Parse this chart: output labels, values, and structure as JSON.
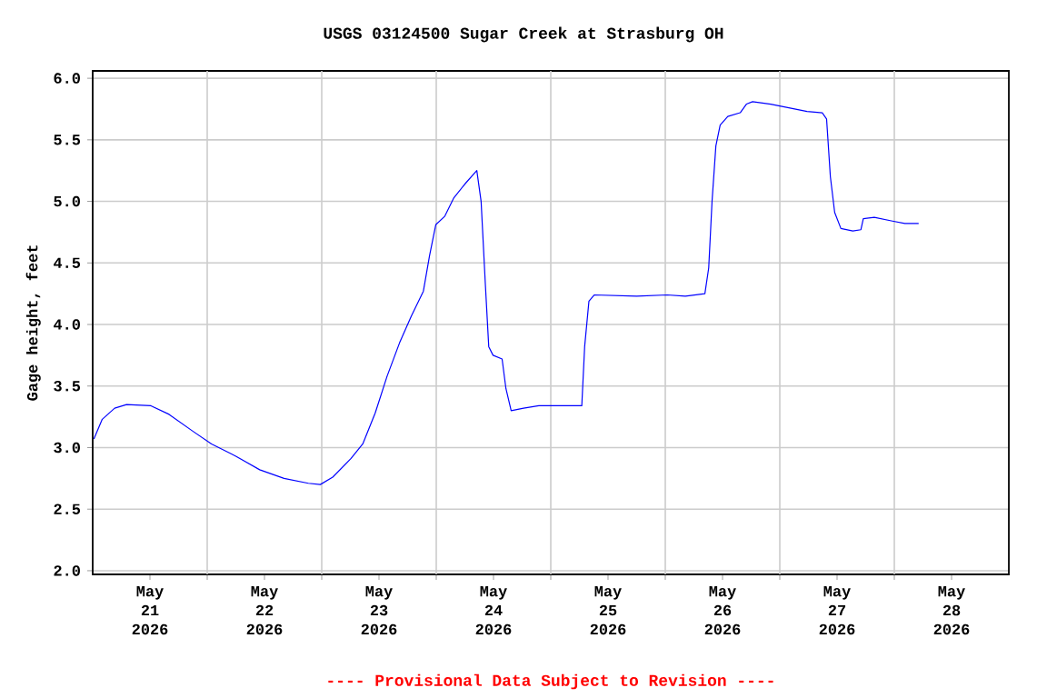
{
  "chart_data": {
    "type": "line",
    "title": "USGS 03124500 Sugar Creek at Strasburg OH",
    "ylabel": "Gage height, feet",
    "annotations": [
      "---- Provisional Data Subject to Revision ----"
    ],
    "x": [
      "2026-05-21T00:15",
      "2026-05-21T02:00",
      "2026-05-21T04:36",
      "2026-05-21T07:06",
      "2026-05-21T12:12",
      "2026-05-21T16:00",
      "2026-05-21T21:06",
      "2026-05-22T00:54",
      "2026-05-22T06:00",
      "2026-05-22T11:00",
      "2026-05-22T16:06",
      "2026-05-22T21:12",
      "2026-05-22T23:42",
      "2026-05-23T02:18",
      "2026-05-23T06:06",
      "2026-05-23T08:36",
      "2026-05-23T11:12",
      "2026-05-23T13:42",
      "2026-05-23T16:18",
      "2026-05-23T18:48",
      "2026-05-23T21:18",
      "2026-05-23T22:36",
      "2026-05-23T23:54",
      "2026-05-24T01:48",
      "2026-05-24T03:42",
      "2026-05-24T06:12",
      "2026-05-24T08:30",
      "2026-05-24T09:24",
      "2026-05-24T10:18",
      "2026-05-24T11:00",
      "2026-05-24T11:54",
      "2026-05-24T13:48",
      "2026-05-24T14:36",
      "2026-05-24T15:42",
      "2026-05-24T18:18",
      "2026-05-24T21:30",
      "2026-05-25T02:18",
      "2026-05-25T06:30",
      "2026-05-25T07:06",
      "2026-05-25T08:00",
      "2026-05-25T09:06",
      "2026-05-25T18:00",
      "2026-05-26T00:24",
      "2026-05-26T04:12",
      "2026-05-26T08:18",
      "2026-05-26T09:06",
      "2026-05-26T09:48",
      "2026-05-26T10:36",
      "2026-05-26T11:30",
      "2026-05-26T13:06",
      "2026-05-26T15:42",
      "2026-05-26T17:00",
      "2026-05-26T18:18",
      "2026-05-26T22:06",
      "2026-05-27T01:54",
      "2026-05-27T05:42",
      "2026-05-27T08:54",
      "2026-05-27T09:48",
      "2026-05-27T10:36",
      "2026-05-27T11:30",
      "2026-05-27T12:48",
      "2026-05-27T15:18",
      "2026-05-27T17:00",
      "2026-05-27T17:30",
      "2026-05-27T19:48",
      "2026-05-27T23:36",
      "2026-05-28T02:12",
      "2026-05-28T05:06"
    ],
    "series": [
      {
        "color": "#0000ff",
        "values": [
          3.07,
          3.23,
          3.32,
          3.35,
          3.34,
          3.27,
          3.13,
          3.03,
          2.93,
          2.82,
          2.75,
          2.71,
          2.7,
          2.76,
          2.91,
          3.03,
          3.28,
          3.58,
          3.85,
          4.07,
          4.27,
          4.56,
          4.81,
          4.88,
          5.03,
          5.15,
          5.25,
          5.0,
          4.32,
          3.82,
          3.75,
          3.72,
          3.48,
          3.3,
          3.32,
          3.34,
          3.34,
          3.34,
          3.82,
          4.19,
          4.24,
          4.23,
          4.24,
          4.23,
          4.25,
          4.46,
          5.0,
          5.45,
          5.62,
          5.69,
          5.72,
          5.79,
          5.81,
          5.79,
          5.76,
          5.73,
          5.72,
          5.67,
          5.2,
          4.91,
          4.78,
          4.76,
          4.77,
          4.86,
          4.87,
          4.84,
          4.82,
          4.82
        ]
      }
    ],
    "xlim": [
      "2026-05-21T00:00",
      "2026-05-29T00:00"
    ],
    "xticks": [
      {
        "value": "2026-05-21T12:00",
        "label": "May 21 2026"
      },
      {
        "value": "2026-05-22T00:00",
        "label": null
      },
      {
        "value": "2026-05-22T12:00",
        "label": "May 22 2026"
      },
      {
        "value": "2026-05-23T00:00",
        "label": null
      },
      {
        "value": "2026-05-23T12:00",
        "label": "May 23 2026"
      },
      {
        "value": "2026-05-24T00:00",
        "label": null
      },
      {
        "value": "2026-05-24T12:00",
        "label": "May 24 2026"
      },
      {
        "value": "2026-05-25T00:00",
        "label": null
      },
      {
        "value": "2026-05-25T12:00",
        "label": "May 25 2026"
      },
      {
        "value": "2026-05-26T00:00",
        "label": null
      },
      {
        "value": "2026-05-26T12:00",
        "label": "May 26 2026"
      },
      {
        "value": "2026-05-27T00:00",
        "label": null
      },
      {
        "value": "2026-05-27T12:00",
        "label": "May 27 2026"
      },
      {
        "value": "2026-05-28T00:00",
        "label": null
      },
      {
        "value": "2026-05-28T12:00",
        "label": "May 28 2026"
      }
    ],
    "ylim": [
      1.97,
      6.06
    ],
    "yticks": [
      {
        "value": 2,
        "label": "2.0"
      },
      {
        "value": 2.5,
        "label": "2.5"
      },
      {
        "value": 3,
        "label": "3.0"
      },
      {
        "value": 3.5,
        "label": "3.5"
      },
      {
        "value": 4,
        "label": "4.0"
      },
      {
        "value": 4.5,
        "label": "4.5"
      },
      {
        "value": 5,
        "label": "5.0"
      },
      {
        "value": 5.5,
        "label": "5.5"
      },
      {
        "value": 6,
        "label": "6.0"
      }
    ],
    "grid": true
  }
}
